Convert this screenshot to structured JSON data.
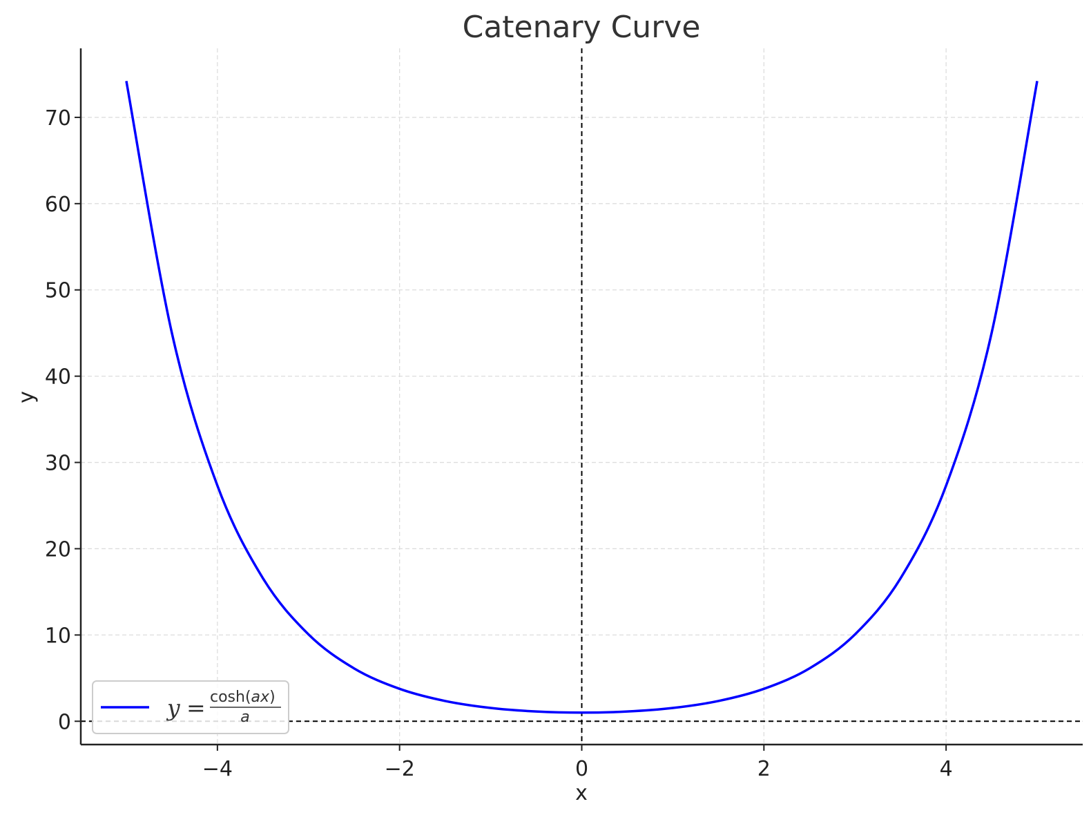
{
  "chart_data": {
    "type": "line",
    "title": "Catenary Curve",
    "xlabel": "x",
    "ylabel": "y",
    "xlim": [
      -5.5,
      5.5
    ],
    "ylim": [
      -2.7,
      78
    ],
    "xticks": [
      -4,
      -2,
      0,
      2,
      4
    ],
    "xtick_labels": [
      "−4",
      "−2",
      "0",
      "2",
      "4"
    ],
    "yticks": [
      0,
      10,
      20,
      30,
      40,
      50,
      60,
      70
    ],
    "ytick_labels": [
      "0",
      "10",
      "20",
      "30",
      "40",
      "50",
      "60",
      "70"
    ],
    "grid": true,
    "legend_position": "lower-left",
    "reference_lines": [
      {
        "orientation": "horizontal",
        "value": 0,
        "style": "dashed"
      },
      {
        "orientation": "vertical",
        "value": 0,
        "style": "dashed"
      }
    ],
    "series": [
      {
        "name": "y = cosh(ax)/a",
        "legend": {
          "lhs": "y",
          "eq": "=",
          "numerator": "cosh(",
          "numerator_var": "ax",
          "numerator_close": ")",
          "denominator": "a"
        },
        "color": "#0000ff",
        "x": [
          -5,
          -4.5,
          -4,
          -3.5,
          -3,
          -2.5,
          -2,
          -1.5,
          -1,
          -0.5,
          0,
          0.5,
          1,
          1.5,
          2,
          2.5,
          3,
          3.5,
          4,
          4.5,
          5
        ],
        "y": [
          74.21,
          45.01,
          27.31,
          16.57,
          10.07,
          6.13,
          3.76,
          2.35,
          1.54,
          1.13,
          1.0,
          1.13,
          1.54,
          2.35,
          3.76,
          6.13,
          10.07,
          16.57,
          27.31,
          45.01,
          74.21
        ]
      }
    ]
  }
}
